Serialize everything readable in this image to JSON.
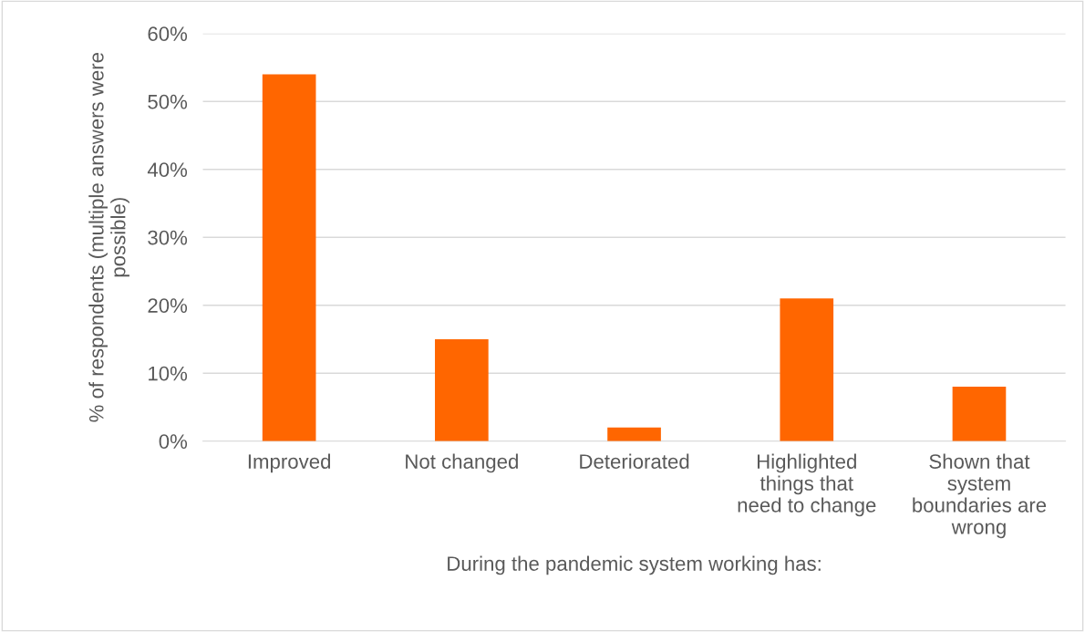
{
  "chart_data": {
    "type": "bar",
    "categories": [
      "Improved",
      "Not changed",
      "Deteriorated",
      "Highlighted\nthings that\nneed to change",
      "Shown that\nsystem\nboundaries are\nwrong"
    ],
    "values": [
      54,
      15,
      2,
      21,
      8
    ],
    "color": "#ff6600",
    "xlabel": "During the pandemic system working has:",
    "ylabel": "% of respondents (multiple answers were\npossible)",
    "ylim": [
      0,
      60
    ],
    "yticks": [
      {
        "value": 0,
        "label": "0%"
      },
      {
        "value": 10,
        "label": "10%"
      },
      {
        "value": 20,
        "label": "20%"
      },
      {
        "value": 30,
        "label": "30%"
      },
      {
        "value": 40,
        "label": "40%"
      },
      {
        "value": 50,
        "label": "50%"
      },
      {
        "value": 60,
        "label": "60%"
      }
    ],
    "grid": "y"
  }
}
